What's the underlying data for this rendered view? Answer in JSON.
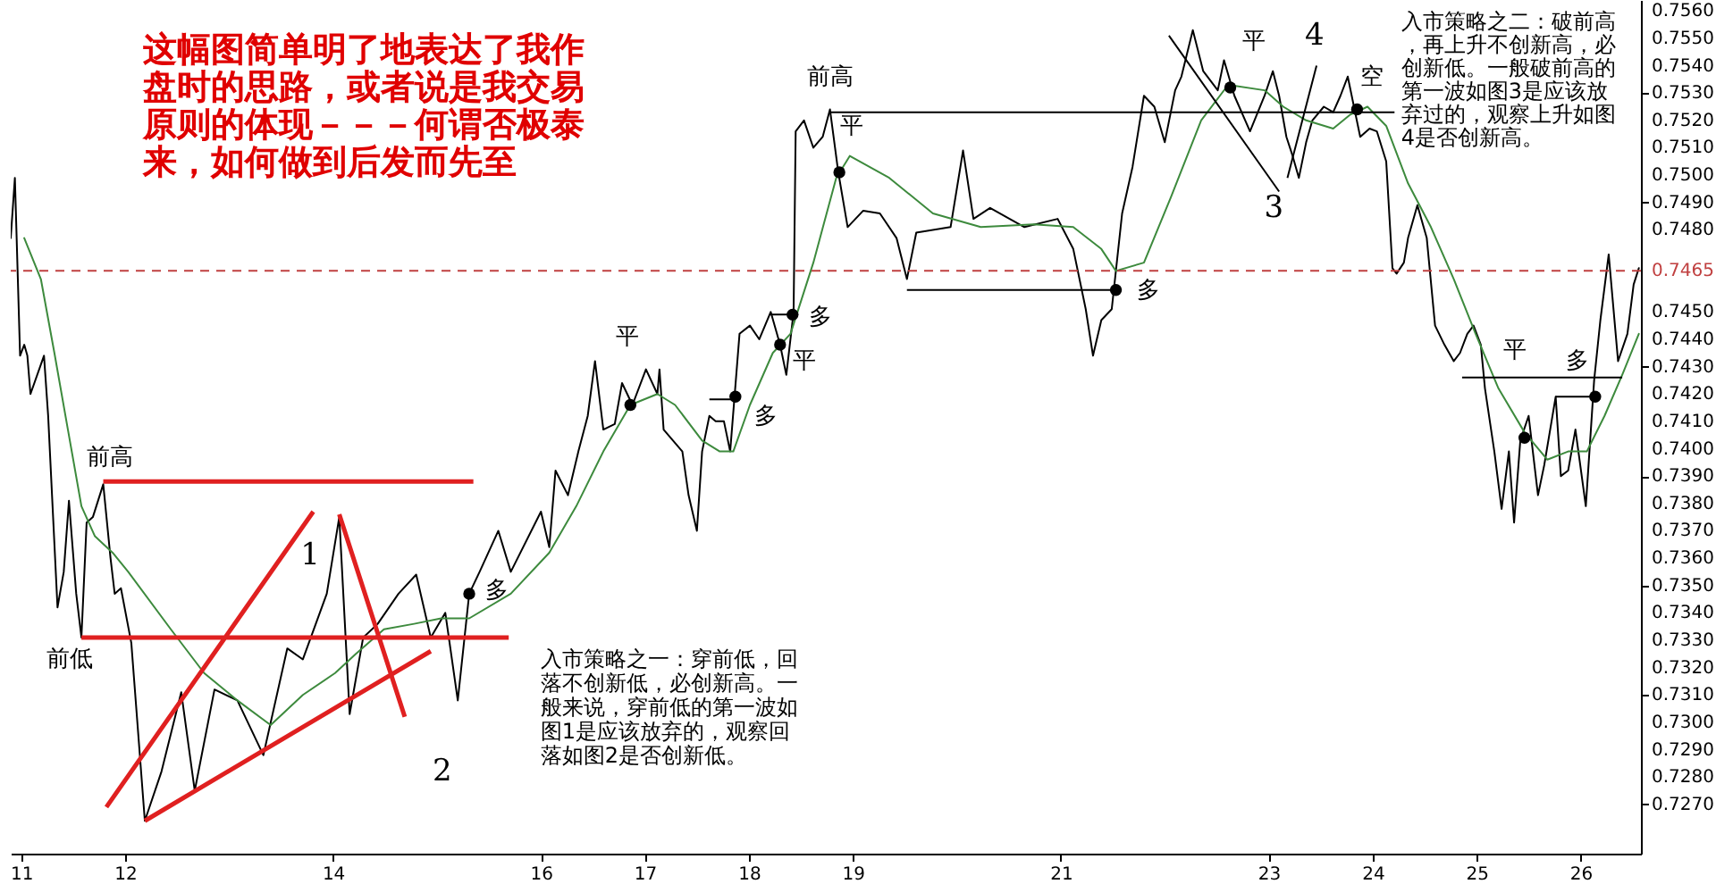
{
  "chart_data": {
    "type": "line",
    "xlim": [
      10.9,
      26.58
    ],
    "ylim": [
      0.7252,
      0.7564
    ],
    "xticks": [
      11,
      12,
      14,
      16,
      17,
      18,
      19,
      21,
      23,
      24,
      25,
      26
    ],
    "yticks": [
      {
        "value": 0.727,
        "label": "0.7270"
      },
      {
        "value": 0.728,
        "label": "0.7280"
      },
      {
        "value": 0.729,
        "label": "0.7290"
      },
      {
        "value": 0.73,
        "label": "0.7300"
      },
      {
        "value": 0.731,
        "label": "0.7310"
      },
      {
        "value": 0.732,
        "label": "0.7320"
      },
      {
        "value": 0.733,
        "label": "0.7330"
      },
      {
        "value": 0.734,
        "label": "0.7340"
      },
      {
        "value": 0.735,
        "label": "0.7350"
      },
      {
        "value": 0.736,
        "label": "0.7360"
      },
      {
        "value": 0.737,
        "label": "0.7370"
      },
      {
        "value": 0.738,
        "label": "0.7380"
      },
      {
        "value": 0.739,
        "label": "0.7390"
      },
      {
        "value": 0.74,
        "label": "0.7400"
      },
      {
        "value": 0.741,
        "label": "0.7410"
      },
      {
        "value": 0.742,
        "label": "0.7420"
      },
      {
        "value": 0.743,
        "label": "0.7430"
      },
      {
        "value": 0.744,
        "label": "0.7440"
      },
      {
        "value": 0.745,
        "label": "0.7450"
      },
      {
        "value": 0.748,
        "label": "0.7480"
      },
      {
        "value": 0.749,
        "label": "0.7490"
      },
      {
        "value": 0.75,
        "label": "0.7500"
      },
      {
        "value": 0.751,
        "label": "0.7510"
      },
      {
        "value": 0.752,
        "label": "0.7520"
      },
      {
        "value": 0.753,
        "label": "0.7530"
      },
      {
        "value": 0.754,
        "label": "0.7540"
      },
      {
        "value": 0.755,
        "label": "0.7550"
      },
      {
        "value": 0.756,
        "label": "0.7560"
      }
    ],
    "series": [
      {
        "color": "#000000",
        "x": [
          10.9,
          10.94,
          10.99,
          11.03,
          11.06,
          11.09,
          11.22,
          11.26,
          11.35,
          11.41,
          11.46,
          11.53,
          11.58,
          11.63,
          11.69,
          11.79,
          11.86,
          11.9,
          11.96,
          12.06,
          12.19,
          12.35,
          12.54,
          12.67,
          12.86,
          13.08,
          13.33,
          13.56,
          13.71,
          13.94,
          14.06,
          14.16,
          14.29,
          14.43,
          14.63,
          14.8,
          14.94,
          15.08,
          15.2,
          15.31,
          15.41,
          15.59,
          15.71,
          16.0,
          16.08,
          16.14,
          16.26,
          16.36,
          16.45,
          16.52,
          16.6,
          16.71,
          16.78,
          16.88,
          17.01,
          17.12,
          17.14,
          17.18,
          17.36,
          17.42,
          17.5,
          17.55,
          17.62,
          17.68,
          17.76,
          17.82,
          17.91,
          18.01,
          18.1,
          18.21,
          18.3,
          18.36,
          18.43,
          18.45,
          18.53,
          18.62,
          18.71,
          18.78,
          18.86,
          18.95,
          19.1,
          19.26,
          19.42,
          19.52,
          19.61,
          19.94,
          20.06,
          20.16,
          20.32,
          20.65,
          20.97,
          21.12,
          21.24,
          21.31,
          21.39,
          21.49,
          21.59,
          21.69,
          21.8,
          21.9,
          22.0,
          22.1,
          22.16,
          22.27,
          22.37,
          22.51,
          22.57,
          22.67,
          22.82,
          22.96,
          23.04,
          23.1,
          23.17,
          23.23,
          23.29,
          23.36,
          23.42,
          23.53,
          23.62,
          23.69,
          23.76,
          23.82,
          23.88,
          23.97,
          24.04,
          24.13,
          24.19,
          24.23,
          24.3,
          24.34,
          24.43,
          24.52,
          24.6,
          24.69,
          24.78,
          24.84,
          24.91,
          24.97,
          25.04,
          25.08,
          25.17,
          25.24,
          25.31,
          25.36,
          25.42,
          25.5,
          25.59,
          25.65,
          25.76,
          25.81,
          25.88,
          25.95,
          26.05,
          26.13,
          26.19,
          26.27,
          26.36,
          26.45,
          26.51,
          26.56
        ],
        "values": [
          0.7477,
          0.7499,
          0.7434,
          0.7438,
          0.7434,
          0.742,
          0.7434,
          0.7412,
          0.7342,
          0.7355,
          0.7381,
          0.7347,
          0.7331,
          0.7373,
          0.7375,
          0.7387,
          0.736,
          0.7347,
          0.7349,
          0.7329,
          0.7264,
          0.7282,
          0.7311,
          0.7275,
          0.7312,
          0.7308,
          0.7288,
          0.7327,
          0.7323,
          0.7347,
          0.7375,
          0.7303,
          0.7331,
          0.7336,
          0.7347,
          0.7354,
          0.7331,
          0.734,
          0.7308,
          0.7347,
          0.7355,
          0.737,
          0.7355,
          0.7377,
          0.7364,
          0.7392,
          0.7383,
          0.7399,
          0.7412,
          0.7432,
          0.7407,
          0.7409,
          0.7424,
          0.7416,
          0.7429,
          0.742,
          0.7429,
          0.7407,
          0.7399,
          0.7383,
          0.737,
          0.7399,
          0.7412,
          0.741,
          0.741,
          0.7399,
          0.7442,
          0.7445,
          0.744,
          0.745,
          0.7438,
          0.7427,
          0.745,
          0.7516,
          0.752,
          0.751,
          0.7514,
          0.7524,
          0.7501,
          0.7481,
          0.7487,
          0.7486,
          0.7477,
          0.7462,
          0.7479,
          0.7481,
          0.7509,
          0.7484,
          0.7488,
          0.7481,
          0.7484,
          0.7473,
          0.7451,
          0.7434,
          0.7447,
          0.7451,
          0.7486,
          0.7503,
          0.7529,
          0.7525,
          0.7512,
          0.7531,
          0.7536,
          0.7553,
          0.7538,
          0.7531,
          0.7542,
          0.7529,
          0.7516,
          0.7529,
          0.7538,
          0.7529,
          0.7514,
          0.7507,
          0.7499,
          0.7512,
          0.752,
          0.7525,
          0.7523,
          0.7529,
          0.7536,
          0.7525,
          0.7514,
          0.7517,
          0.7516,
          0.7505,
          0.7466,
          0.7464,
          0.7468,
          0.7477,
          0.7489,
          0.7477,
          0.7445,
          0.7438,
          0.7432,
          0.7435,
          0.7442,
          0.7445,
          0.7438,
          0.7422,
          0.7399,
          0.7378,
          0.7399,
          0.7373,
          0.7403,
          0.7412,
          0.7383,
          0.7394,
          0.7419,
          0.739,
          0.7392,
          0.7407,
          0.7379,
          0.7425,
          0.7447,
          0.7471,
          0.7432,
          0.7442,
          0.746,
          0.7466
        ]
      },
      {
        "color": "#3d8a3d",
        "x": [
          11.03,
          11.19,
          11.32,
          11.45,
          11.58,
          11.71,
          11.88,
          12.03,
          12.44,
          12.76,
          13.08,
          13.4,
          13.71,
          14.02,
          14.22,
          14.49,
          14.78,
          15.04,
          15.31,
          15.71,
          16.08,
          16.34,
          16.6,
          16.86,
          17.12,
          17.29,
          17.55,
          17.72,
          17.85,
          18.01,
          18.23,
          18.4,
          18.62,
          18.84,
          18.97,
          19.35,
          19.77,
          20.23,
          20.74,
          21.12,
          21.39,
          21.53,
          21.8,
          22.06,
          22.35,
          22.61,
          22.96,
          23.14,
          23.36,
          23.62,
          23.78,
          23.95,
          24.13,
          24.34,
          24.56,
          24.78,
          24.99,
          25.21,
          25.46,
          25.68,
          25.88,
          26.06,
          26.23,
          26.4,
          26.56
        ],
        "values": [
          0.7477,
          0.7462,
          0.7435,
          0.7407,
          0.7379,
          0.7368,
          0.7362,
          0.7355,
          0.7334,
          0.7318,
          0.7308,
          0.7299,
          0.731,
          0.7318,
          0.7325,
          0.7334,
          0.7336,
          0.7338,
          0.7338,
          0.7347,
          0.7362,
          0.7379,
          0.7399,
          0.7416,
          0.742,
          0.7416,
          0.7403,
          0.7399,
          0.7399,
          0.7416,
          0.7435,
          0.7442,
          0.7468,
          0.7499,
          0.7507,
          0.7499,
          0.7486,
          0.7481,
          0.7482,
          0.7481,
          0.7473,
          0.7465,
          0.7468,
          0.7492,
          0.752,
          0.7533,
          0.7531,
          0.7525,
          0.752,
          0.7517,
          0.7522,
          0.7525,
          0.7518,
          0.7497,
          0.7481,
          0.7462,
          0.7442,
          0.7422,
          0.7406,
          0.7396,
          0.7399,
          0.7399,
          0.7412,
          0.7427,
          0.7442
        ]
      },
      {
        "type": "scatter",
        "marker": "circle",
        "color": "#000000",
        "x": [
          15.31,
          16.86,
          17.87,
          18.3,
          18.42,
          18.87,
          21.53,
          22.63,
          23.85,
          25.46,
          26.14
        ],
        "values": [
          0.7347,
          0.7416,
          0.7419,
          0.7438,
          0.7449,
          0.7501,
          0.7458,
          0.7532,
          0.7524,
          0.7404,
          0.7419
        ]
      }
    ],
    "ref_lines": [
      {
        "axis": "y",
        "value": 0.7465,
        "label": "0.7465",
        "color": "#c04040",
        "line_style": "dashed"
      }
    ],
    "annotations": [
      "这幅图简单明了地表达了我作盘时的思路，或者说是我交易原则的体现－－－何谓否极泰来，如何做到后发而先至",
      "入市策略之一：穿前低，回落不创新低，必创新高。一般来说，穿前低的第一波如图1是应该放弃的，观察回落如图2是否创新低。",
      "入市策略之二：破前高，再上升不创新高，必创新低。一般破前高的第一波如图3是应该放弃过的，观察上升如图4是否创新高。",
      "前高",
      "前低",
      "1",
      "2",
      {
        "text": "多",
        "x": 15.31,
        "y": 0.7347
      },
      "平",
      "多",
      "平",
      "多",
      "前高",
      "平",
      "多",
      "平",
      "4",
      "3",
      "空",
      "平",
      "多"
    ]
  }
}
